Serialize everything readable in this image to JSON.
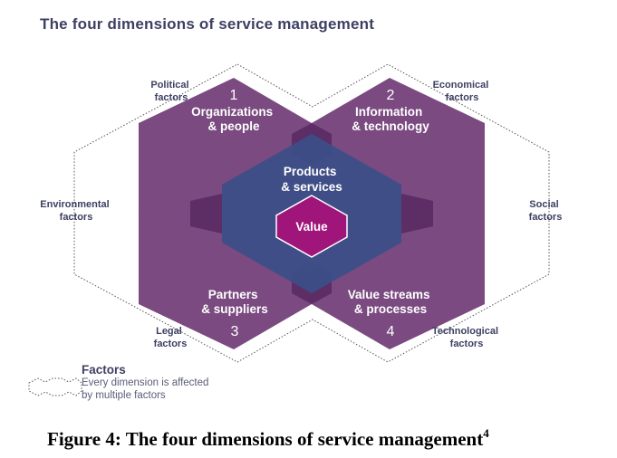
{
  "title": "The four dimensions of service management",
  "factors": {
    "political": [
      "Political",
      "factors"
    ],
    "economical": [
      "Economical",
      "factors"
    ],
    "environmental": [
      "Environmental",
      "factors"
    ],
    "social": [
      "Social",
      "factors"
    ],
    "legal": [
      "Legal",
      "factors"
    ],
    "technological": [
      "Technological",
      "factors"
    ]
  },
  "dimensions": [
    {
      "number": "1",
      "lines": [
        "Organizations",
        "& people"
      ]
    },
    {
      "number": "2",
      "lines": [
        "Information",
        "& technology"
      ]
    },
    {
      "number": "3",
      "lines": [
        "Partners",
        "& suppliers"
      ]
    },
    {
      "number": "4",
      "lines": [
        "Value streams",
        "& processes"
      ]
    }
  ],
  "center": {
    "lines": [
      "Products",
      "& services"
    ],
    "value": "Value"
  },
  "legend": {
    "title": "Factors",
    "lines": [
      "Every dimension is affected",
      "by multiple factors"
    ]
  },
  "caption": {
    "text": "Figure 4: The four dimensions of service management",
    "sup": "4"
  },
  "colors": {
    "dimension": "#7a4a80",
    "overlap": "#5d2e66",
    "center": "#3b4f88",
    "value": "#a0157a",
    "title": "#3d3f63",
    "outline": "#555555"
  }
}
